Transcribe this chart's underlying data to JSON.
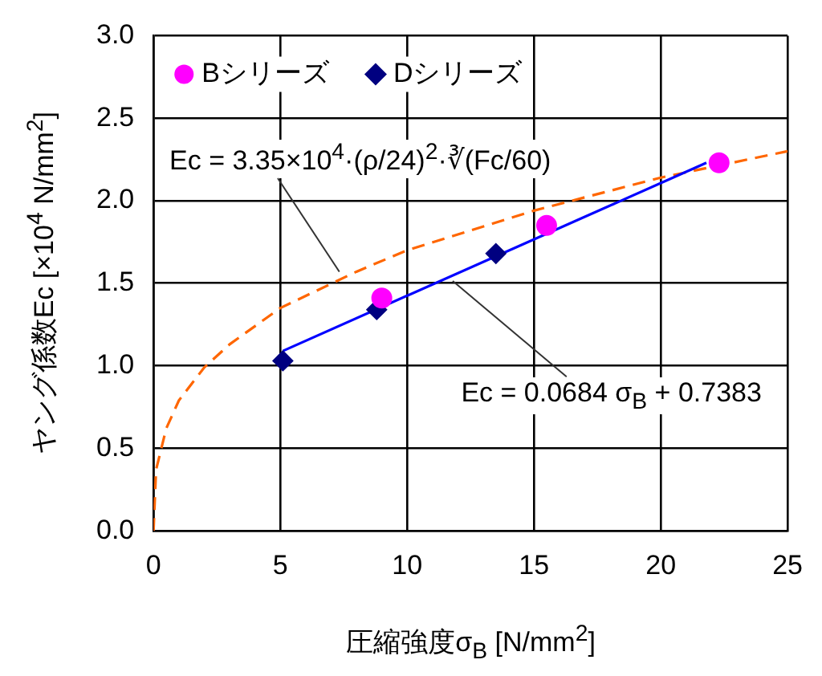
{
  "chart_data": {
    "type": "scatter",
    "xlabel": "圧縮強度σ$_{B}$ [N/mm$^{2}$]",
    "ylabel": "ヤング係数Ec [×10$^{4}$ N/mm$^{2}$]",
    "xlim": [
      0,
      25
    ],
    "xticks": [
      0,
      5,
      10,
      15,
      20,
      25
    ],
    "ylim": [
      0,
      3
    ],
    "yticks": [
      {
        "value": 0,
        "label": "0.0"
      },
      {
        "value": 0.5,
        "label": "0.5"
      },
      {
        "value": 1,
        "label": "1.0"
      },
      {
        "value": 1.5,
        "label": "1.5"
      },
      {
        "value": 2,
        "label": "2.0"
      },
      {
        "value": 2.5,
        "label": "2.5"
      },
      {
        "value": 3,
        "label": "3.0"
      }
    ],
    "grid": true,
    "legend": "top left",
    "series": [
      {
        "name": "Bシリーズ",
        "marker": "circle",
        "color": "#ff00ff",
        "x": [
          9.0,
          15.5,
          22.3
        ],
        "values": [
          1.41,
          1.85,
          2.23
        ]
      },
      {
        "name": "Dシリーズ",
        "marker": "diamond",
        "color": "#000080",
        "x": [
          5.1,
          8.8,
          13.5
        ],
        "values": [
          1.03,
          1.34,
          1.68
        ]
      },
      {
        "type": "line",
        "marker": "none",
        "line_style": "solid",
        "color": "#0000ff",
        "x": [
          5.1,
          21.8
        ],
        "values": [
          1.09,
          2.23
        ]
      },
      {
        "type": "line",
        "marker": "none",
        "line_style": "dashed",
        "color": "#ff6600",
        "x": [
          0,
          0.1,
          0.5,
          1,
          2,
          3,
          5,
          8,
          10,
          15,
          20,
          25
        ],
        "values": [
          0,
          0.37,
          0.62,
          0.79,
          0.99,
          1.13,
          1.35,
          1.57,
          1.7,
          1.94,
          2.14,
          2.3
        ]
      }
    ],
    "annotations": [
      {
        "text": "Ec = 3.35×10$^{4}$·(ρ/24)$^{2}$·∛(Fc/60)",
        "x": 7.3,
        "y": 1.57
      },
      {
        "text": "Ec = 0.0684 σ$_{B}$ + 0.7383",
        "x": 11.8,
        "y": 1.51
      }
    ]
  }
}
